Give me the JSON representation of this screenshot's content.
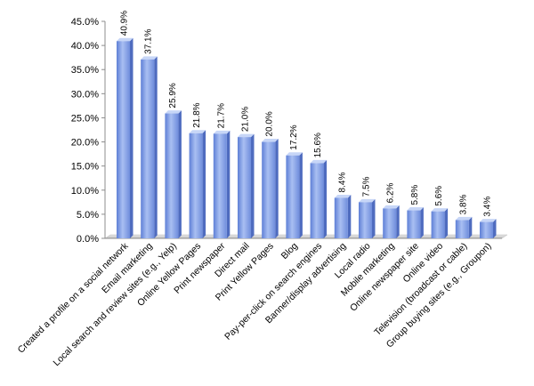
{
  "chart_data": {
    "type": "bar",
    "title": "",
    "xlabel": "",
    "ylabel": "",
    "ylim": [
      0,
      45
    ],
    "yticks": [
      "0.0%",
      "5.0%",
      "10.0%",
      "15.0%",
      "20.0%",
      "25.0%",
      "30.0%",
      "35.0%",
      "40.0%",
      "45.0%"
    ],
    "grid": false,
    "legend": "none",
    "bar_color": "#7f9be6",
    "categories": [
      "Created a profile on a social network",
      "Email marketing",
      "Local search and review sites (e.g., Yelp)",
      "Online Yellow Pages",
      "Print newspaper",
      "Direct mail",
      "Print Yellow Pages",
      "Blog",
      "Pay-per-click on search engines",
      "Banner/display advertising",
      "Local radio",
      "Mobile marketing",
      "Online newspaper site",
      "Online video",
      "Television (broadcast or cable)",
      "Group buying sites (e.g., Groupon)"
    ],
    "values": [
      40.9,
      37.1,
      25.9,
      21.8,
      21.7,
      21.0,
      20.0,
      17.2,
      15.6,
      8.4,
      7.5,
      6.2,
      5.8,
      5.6,
      3.8,
      3.4
    ],
    "labels": [
      "40.9%",
      "37.1%",
      "25.9%",
      "21.8%",
      "21.7%",
      "21.0%",
      "20.0%",
      "17.2%",
      "15.6%",
      "8.4%",
      "7.5%",
      "6.2%",
      "5.8%",
      "5.6%",
      "3.8%",
      "3.4%"
    ]
  }
}
